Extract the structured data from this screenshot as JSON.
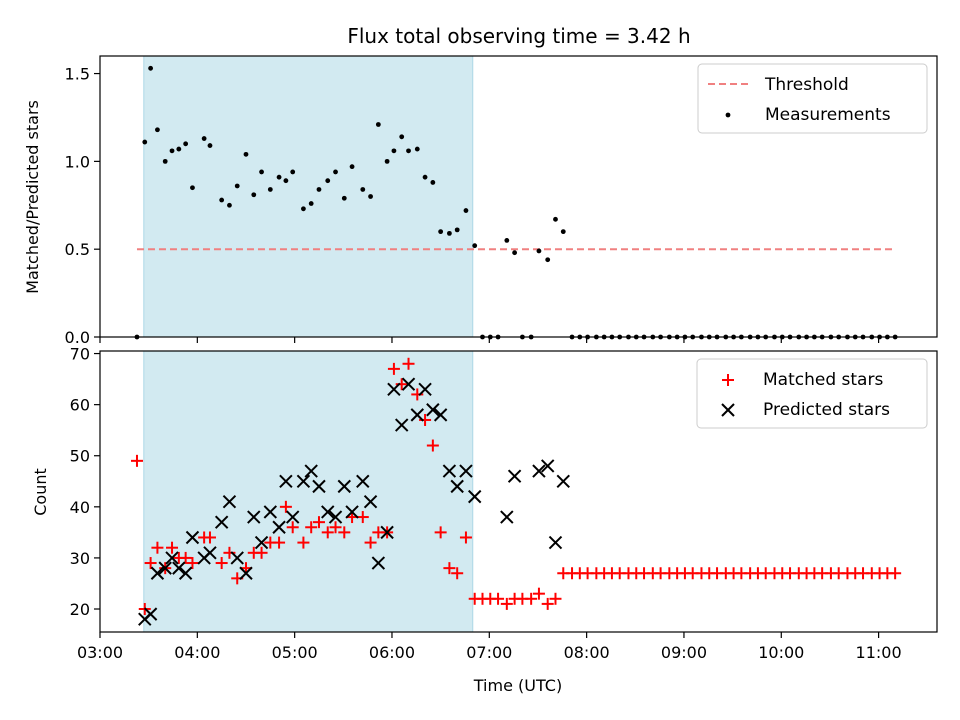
{
  "chart_data": [
    {
      "type": "scatter",
      "title": "Flux total observing time = 3.42 h",
      "xlabel": "",
      "ylabel": "Matched/Predicted stars",
      "xlim": [
        3.0,
        11.6
      ],
      "ylim": [
        0.0,
        1.6
      ],
      "yticks": [
        0.0,
        0.5,
        1.0,
        1.5
      ],
      "ytick_labels": [
        "0.0",
        "0.5",
        "1.0",
        "1.5"
      ],
      "xtick_labels_shown": false,
      "shaded_span": [
        3.45,
        6.83
      ],
      "shade_color": "#add8e6",
      "legend_position": "upper right",
      "series": [
        {
          "name": "Threshold",
          "style": "dashed-line",
          "color": "#f08080",
          "x": [
            3.38,
            11.17
          ],
          "y": [
            0.5,
            0.5
          ]
        },
        {
          "name": "Measurements",
          "style": "dot",
          "color": "#000000",
          "points": [
            [
              3.38,
              0.0
            ],
            [
              3.46,
              1.11
            ],
            [
              3.52,
              1.53
            ],
            [
              3.59,
              1.18
            ],
            [
              3.67,
              1.0
            ],
            [
              3.74,
              1.06
            ],
            [
              3.81,
              1.07
            ],
            [
              3.88,
              1.1
            ],
            [
              3.95,
              0.85
            ],
            [
              4.07,
              1.13
            ],
            [
              4.13,
              1.09
            ],
            [
              4.25,
              0.78
            ],
            [
              4.33,
              0.75
            ],
            [
              4.41,
              0.86
            ],
            [
              4.5,
              1.04
            ],
            [
              4.58,
              0.81
            ],
            [
              4.66,
              0.94
            ],
            [
              4.75,
              0.84
            ],
            [
              4.84,
              0.91
            ],
            [
              4.91,
              0.89
            ],
            [
              4.98,
              0.94
            ],
            [
              5.09,
              0.73
            ],
            [
              5.17,
              0.76
            ],
            [
              5.25,
              0.84
            ],
            [
              5.34,
              0.89
            ],
            [
              5.42,
              0.94
            ],
            [
              5.51,
              0.79
            ],
            [
              5.59,
              0.97
            ],
            [
              5.7,
              0.84
            ],
            [
              5.78,
              0.8
            ],
            [
              5.86,
              1.21
            ],
            [
              5.95,
              1.0
            ],
            [
              6.02,
              1.06
            ],
            [
              6.1,
              1.14
            ],
            [
              6.17,
              1.06
            ],
            [
              6.26,
              1.07
            ],
            [
              6.34,
              0.91
            ],
            [
              6.42,
              0.88
            ],
            [
              6.5,
              0.6
            ],
            [
              6.59,
              0.59
            ],
            [
              6.67,
              0.61
            ],
            [
              6.76,
              0.72
            ],
            [
              6.85,
              0.52
            ],
            [
              6.93,
              0.0
            ],
            [
              7.01,
              0.0
            ],
            [
              7.09,
              0.0
            ],
            [
              7.18,
              0.55
            ],
            [
              7.26,
              0.48
            ],
            [
              7.34,
              0.0
            ],
            [
              7.43,
              0.0
            ],
            [
              7.51,
              0.49
            ],
            [
              7.6,
              0.44
            ],
            [
              7.68,
              0.67
            ],
            [
              7.76,
              0.6
            ],
            [
              7.85,
              0.0
            ],
            [
              7.93,
              0.0
            ],
            [
              8.01,
              0.0
            ],
            [
              8.1,
              0.0
            ],
            [
              8.18,
              0.0
            ],
            [
              8.26,
              0.0
            ],
            [
              8.34,
              0.0
            ],
            [
              8.43,
              0.0
            ],
            [
              8.51,
              0.0
            ],
            [
              8.59,
              0.0
            ],
            [
              8.68,
              0.0
            ],
            [
              8.76,
              0.0
            ],
            [
              8.85,
              0.0
            ],
            [
              8.93,
              0.0
            ],
            [
              9.01,
              0.0
            ],
            [
              9.09,
              0.0
            ],
            [
              9.18,
              0.0
            ],
            [
              9.26,
              0.0
            ],
            [
              9.34,
              0.0
            ],
            [
              9.43,
              0.0
            ],
            [
              9.51,
              0.0
            ],
            [
              9.59,
              0.0
            ],
            [
              9.68,
              0.0
            ],
            [
              9.76,
              0.0
            ],
            [
              9.84,
              0.0
            ],
            [
              9.93,
              0.0
            ],
            [
              10.01,
              0.0
            ],
            [
              10.09,
              0.0
            ],
            [
              10.18,
              0.0
            ],
            [
              10.26,
              0.0
            ],
            [
              10.34,
              0.0
            ],
            [
              10.42,
              0.0
            ],
            [
              10.51,
              0.0
            ],
            [
              10.59,
              0.0
            ],
            [
              10.68,
              0.0
            ],
            [
              10.76,
              0.0
            ],
            [
              10.84,
              0.0
            ],
            [
              10.93,
              0.0
            ],
            [
              11.01,
              0.0
            ],
            [
              11.09,
              0.0
            ],
            [
              11.17,
              0.0
            ]
          ]
        }
      ]
    },
    {
      "type": "scatter",
      "title": "",
      "xlabel": "Time (UTC)",
      "ylabel": "Count",
      "xlim": [
        3.0,
        11.6
      ],
      "ylim": [
        15.5,
        70.5
      ],
      "xticks": [
        3,
        4,
        5,
        6,
        7,
        8,
        9,
        10,
        11
      ],
      "xtick_labels": [
        "03:00",
        "04:00",
        "05:00",
        "06:00",
        "07:00",
        "08:00",
        "09:00",
        "10:00",
        "11:00"
      ],
      "yticks": [
        20,
        30,
        40,
        50,
        60,
        70
      ],
      "ytick_labels": [
        "20",
        "30",
        "40",
        "50",
        "60",
        "70"
      ],
      "shaded_span": [
        3.45,
        6.83
      ],
      "shade_color": "#add8e6",
      "legend_position": "upper right",
      "series": [
        {
          "name": "Matched stars",
          "style": "plus",
          "color": "#ff0000",
          "points": [
            [
              3.38,
              49
            ],
            [
              3.46,
              20
            ],
            [
              3.52,
              29
            ],
            [
              3.59,
              32
            ],
            [
              3.67,
              28
            ],
            [
              3.74,
              32
            ],
            [
              3.81,
              30
            ],
            [
              3.88,
              30
            ],
            [
              3.95,
              29
            ],
            [
              4.07,
              34
            ],
            [
              4.13,
              34
            ],
            [
              4.25,
              29
            ],
            [
              4.33,
              31
            ],
            [
              4.41,
              26
            ],
            [
              4.5,
              28
            ],
            [
              4.58,
              31
            ],
            [
              4.66,
              31
            ],
            [
              4.75,
              33
            ],
            [
              4.84,
              33
            ],
            [
              4.91,
              40
            ],
            [
              4.98,
              36
            ],
            [
              5.09,
              33
            ],
            [
              5.17,
              36
            ],
            [
              5.25,
              37
            ],
            [
              5.34,
              35
            ],
            [
              5.42,
              36
            ],
            [
              5.51,
              35
            ],
            [
              5.59,
              38
            ],
            [
              5.7,
              38
            ],
            [
              5.78,
              33
            ],
            [
              5.86,
              35
            ],
            [
              5.95,
              35
            ],
            [
              6.02,
              67
            ],
            [
              6.1,
              64
            ],
            [
              6.17,
              68
            ],
            [
              6.26,
              62
            ],
            [
              6.34,
              57
            ],
            [
              6.42,
              52
            ],
            [
              6.5,
              35
            ],
            [
              6.59,
              28
            ],
            [
              6.67,
              27
            ],
            [
              6.76,
              34
            ],
            [
              6.85,
              22
            ],
            [
              6.93,
              22
            ],
            [
              7.01,
              22
            ],
            [
              7.09,
              22
            ],
            [
              7.18,
              21
            ],
            [
              7.26,
              22
            ],
            [
              7.34,
              22
            ],
            [
              7.43,
              22
            ],
            [
              7.51,
              23
            ],
            [
              7.6,
              21
            ],
            [
              7.68,
              22
            ],
            [
              7.76,
              27
            ],
            [
              7.85,
              27
            ],
            [
              7.93,
              27
            ],
            [
              8.01,
              27
            ],
            [
              8.1,
              27
            ],
            [
              8.18,
              27
            ],
            [
              8.26,
              27
            ],
            [
              8.34,
              27
            ],
            [
              8.43,
              27
            ],
            [
              8.51,
              27
            ],
            [
              8.59,
              27
            ],
            [
              8.68,
              27
            ],
            [
              8.76,
              27
            ],
            [
              8.85,
              27
            ],
            [
              8.93,
              27
            ],
            [
              9.01,
              27
            ],
            [
              9.09,
              27
            ],
            [
              9.18,
              27
            ],
            [
              9.26,
              27
            ],
            [
              9.34,
              27
            ],
            [
              9.43,
              27
            ],
            [
              9.51,
              27
            ],
            [
              9.59,
              27
            ],
            [
              9.68,
              27
            ],
            [
              9.76,
              27
            ],
            [
              9.84,
              27
            ],
            [
              9.93,
              27
            ],
            [
              10.01,
              27
            ],
            [
              10.09,
              27
            ],
            [
              10.18,
              27
            ],
            [
              10.26,
              27
            ],
            [
              10.34,
              27
            ],
            [
              10.42,
              27
            ],
            [
              10.51,
              27
            ],
            [
              10.59,
              27
            ],
            [
              10.68,
              27
            ],
            [
              10.76,
              27
            ],
            [
              10.84,
              27
            ],
            [
              10.93,
              27
            ],
            [
              11.01,
              27
            ],
            [
              11.09,
              27
            ],
            [
              11.17,
              27
            ]
          ]
        },
        {
          "name": "Predicted stars",
          "style": "x",
          "color": "#000000",
          "points": [
            [
              3.46,
              18
            ],
            [
              3.52,
              19
            ],
            [
              3.59,
              27
            ],
            [
              3.67,
              28
            ],
            [
              3.74,
              30
            ],
            [
              3.81,
              28
            ],
            [
              3.88,
              27
            ],
            [
              3.95,
              34
            ],
            [
              4.07,
              30
            ],
            [
              4.13,
              31
            ],
            [
              4.25,
              37
            ],
            [
              4.33,
              41
            ],
            [
              4.41,
              30
            ],
            [
              4.5,
              27
            ],
            [
              4.58,
              38
            ],
            [
              4.66,
              33
            ],
            [
              4.75,
              39
            ],
            [
              4.84,
              36
            ],
            [
              4.91,
              45
            ],
            [
              4.98,
              38
            ],
            [
              5.09,
              45
            ],
            [
              5.17,
              47
            ],
            [
              5.25,
              44
            ],
            [
              5.34,
              39
            ],
            [
              5.42,
              38
            ],
            [
              5.51,
              44
            ],
            [
              5.59,
              39
            ],
            [
              5.7,
              45
            ],
            [
              5.78,
              41
            ],
            [
              5.86,
              29
            ],
            [
              5.95,
              35
            ],
            [
              6.02,
              63
            ],
            [
              6.1,
              56
            ],
            [
              6.17,
              64
            ],
            [
              6.26,
              58
            ],
            [
              6.34,
              63
            ],
            [
              6.42,
              59
            ],
            [
              6.5,
              58
            ],
            [
              6.59,
              47
            ],
            [
              6.67,
              44
            ],
            [
              6.76,
              47
            ],
            [
              6.85,
              42
            ],
            [
              7.18,
              38
            ],
            [
              7.26,
              46
            ],
            [
              7.51,
              47
            ],
            [
              7.6,
              48
            ],
            [
              7.68,
              33
            ],
            [
              7.76,
              45
            ]
          ]
        }
      ]
    }
  ]
}
